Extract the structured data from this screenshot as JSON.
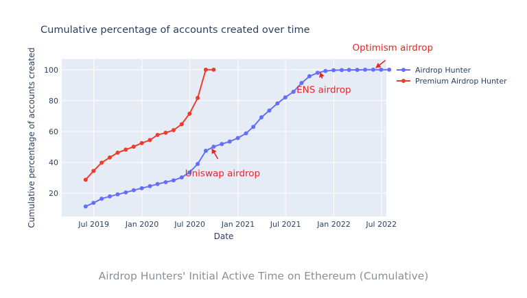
{
  "caption": "Airdrop Hunters' Initial Active Time on Ethereum (Cumulative)",
  "chart_data": {
    "type": "line",
    "title": "Cumulative percentage of accounts created over time",
    "xlabel": "Date",
    "ylabel": "Cumulative percentage of accounts created",
    "xlim": [
      "2019-03-01",
      "2022-07-20"
    ],
    "ylim": [
      5,
      107
    ],
    "x_ticks": [
      {
        "date": "2019-07-01",
        "label": "Jul 2019"
      },
      {
        "date": "2020-01-01",
        "label": "Jan 2020"
      },
      {
        "date": "2020-07-01",
        "label": "Jul 2020"
      },
      {
        "date": "2021-01-01",
        "label": "Jan 2021"
      },
      {
        "date": "2021-07-01",
        "label": "Jul 2021"
      },
      {
        "date": "2022-01-01",
        "label": "Jan 2022"
      },
      {
        "date": "2022-07-01",
        "label": "Jul 2022"
      }
    ],
    "y_ticks": [
      20,
      40,
      60,
      80,
      100
    ],
    "grid": true,
    "legend_position": "top-right",
    "colors": {
      "background": "#e5ecf6",
      "grid": "#ffffff",
      "annotation": "#ee2222"
    },
    "series": [
      {
        "name": "Airdrop Hunter",
        "color": "#636efa",
        "points": [
          {
            "x": "2019-05-31",
            "y": 11.5
          },
          {
            "x": "2019-06-30",
            "y": 13.8
          },
          {
            "x": "2019-07-31",
            "y": 16.5
          },
          {
            "x": "2019-08-31",
            "y": 18.0
          },
          {
            "x": "2019-09-30",
            "y": 19.3
          },
          {
            "x": "2019-10-31",
            "y": 20.6
          },
          {
            "x": "2019-11-30",
            "y": 22.0
          },
          {
            "x": "2019-12-31",
            "y": 23.3
          },
          {
            "x": "2020-01-31",
            "y": 24.6
          },
          {
            "x": "2020-02-29",
            "y": 26.0
          },
          {
            "x": "2020-03-31",
            "y": 27.2
          },
          {
            "x": "2020-04-30",
            "y": 28.4
          },
          {
            "x": "2020-05-31",
            "y": 30.3
          },
          {
            "x": "2020-06-30",
            "y": 33.5
          },
          {
            "x": "2020-07-31",
            "y": 39.0
          },
          {
            "x": "2020-08-31",
            "y": 47.5
          },
          {
            "x": "2020-09-30",
            "y": 50.2
          },
          {
            "x": "2020-10-31",
            "y": 51.9
          },
          {
            "x": "2020-11-30",
            "y": 53.5
          },
          {
            "x": "2020-12-31",
            "y": 55.8
          },
          {
            "x": "2021-01-31",
            "y": 58.8
          },
          {
            "x": "2021-02-28",
            "y": 63.0
          },
          {
            "x": "2021-03-31",
            "y": 69.2
          },
          {
            "x": "2021-04-30",
            "y": 73.6
          },
          {
            "x": "2021-05-31",
            "y": 78.2
          },
          {
            "x": "2021-06-30",
            "y": 82.1
          },
          {
            "x": "2021-07-31",
            "y": 85.7
          },
          {
            "x": "2021-08-31",
            "y": 91.4
          },
          {
            "x": "2021-09-30",
            "y": 95.8
          },
          {
            "x": "2021-10-31",
            "y": 98.0
          },
          {
            "x": "2021-11-30",
            "y": 99.2
          },
          {
            "x": "2021-12-31",
            "y": 99.7
          },
          {
            "x": "2022-01-31",
            "y": 99.8
          },
          {
            "x": "2022-02-28",
            "y": 99.9
          },
          {
            "x": "2022-03-31",
            "y": 99.9
          },
          {
            "x": "2022-04-30",
            "y": 100
          },
          {
            "x": "2022-05-31",
            "y": 100
          },
          {
            "x": "2022-06-30",
            "y": 100
          },
          {
            "x": "2022-07-31",
            "y": 100
          }
        ]
      },
      {
        "name": "Premium Airdrop Hunter",
        "color": "#ef3b2c",
        "points": [
          {
            "x": "2019-05-31",
            "y": 28.8
          },
          {
            "x": "2019-06-30",
            "y": 34.5
          },
          {
            "x": "2019-07-31",
            "y": 39.8
          },
          {
            "x": "2019-08-31",
            "y": 43.2
          },
          {
            "x": "2019-09-30",
            "y": 46.3
          },
          {
            "x": "2019-10-31",
            "y": 48.3
          },
          {
            "x": "2019-11-30",
            "y": 50.2
          },
          {
            "x": "2019-12-31",
            "y": 52.5
          },
          {
            "x": "2020-01-31",
            "y": 54.5
          },
          {
            "x": "2020-02-29",
            "y": 57.8
          },
          {
            "x": "2020-03-31",
            "y": 59.2
          },
          {
            "x": "2020-04-30",
            "y": 60.9
          },
          {
            "x": "2020-05-31",
            "y": 64.7
          },
          {
            "x": "2020-06-30",
            "y": 71.5
          },
          {
            "x": "2020-07-31",
            "y": 81.7
          },
          {
            "x": "2020-08-31",
            "y": 100
          },
          {
            "x": "2020-09-30",
            "y": 100
          }
        ]
      }
    ],
    "annotations": [
      {
        "text": "Uniswap airdrop",
        "x": "2020-09-17",
        "y": 50.5
      },
      {
        "text": "ENS airdrop",
        "x": "2021-11-08",
        "y": 99.3
      },
      {
        "text": "Optimism airdrop",
        "x": "2022-06-01",
        "y": 100
      }
    ]
  }
}
